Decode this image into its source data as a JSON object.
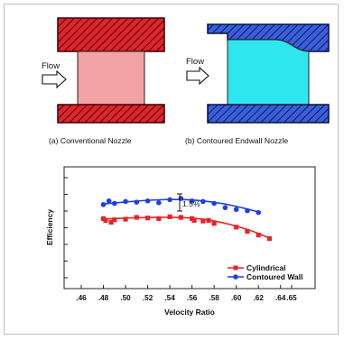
{
  "diagram": {
    "left": {
      "flow_label": "Flow",
      "caption": "(a)  Conventional Nozzle"
    },
    "right": {
      "flow_label": "Flow",
      "caption": "(b)  Contoured Endwall Nozzle"
    },
    "colors": {
      "left_wall": "#e0242c",
      "left_passage": "#f2a2a2",
      "right_wall": "#3a5fdc",
      "right_passage": "#2fe6ef"
    }
  },
  "chart_data": {
    "type": "scatter",
    "title": "",
    "xlabel": "Velocity Ratio",
    "ylabel": "Efficiency",
    "xlim": [
      0.46,
      0.65
    ],
    "x_ticks": [
      ".46",
      ".48",
      ".50",
      ".52",
      ".54",
      ".56",
      ".58",
      ".60",
      ".62",
      ".64",
      ".65"
    ],
    "y_tick_count": 7,
    "y_tick_labels": "none",
    "annotation": "1.5%",
    "legend_position": "bottom-right",
    "series": [
      {
        "name": "Cylindrical",
        "color": "#e8232a",
        "marker": "square",
        "points": [
          [
            0.48,
            0.575
          ],
          [
            0.482,
            0.56
          ],
          [
            0.487,
            0.545
          ],
          [
            0.49,
            0.565
          ],
          [
            0.5,
            0.57
          ],
          [
            0.51,
            0.585
          ],
          [
            0.52,
            0.58
          ],
          [
            0.53,
            0.575
          ],
          [
            0.54,
            0.59
          ],
          [
            0.55,
            0.585
          ],
          [
            0.56,
            0.575
          ],
          [
            0.562,
            0.56
          ],
          [
            0.57,
            0.555
          ],
          [
            0.575,
            0.56
          ],
          [
            0.58,
            0.535
          ],
          [
            0.6,
            0.505
          ],
          [
            0.61,
            0.47
          ],
          [
            0.62,
            0.44
          ],
          [
            0.63,
            0.41
          ]
        ],
        "fit": [
          [
            0.48,
            0.572
          ],
          [
            0.52,
            0.586
          ],
          [
            0.555,
            0.585
          ],
          [
            0.58,
            0.56
          ],
          [
            0.61,
            0.49
          ],
          [
            0.63,
            0.415
          ]
        ]
      },
      {
        "name": "Contoured Wall",
        "color": "#1f3fe0",
        "marker": "circle",
        "points": [
          [
            0.48,
            0.69
          ],
          [
            0.485,
            0.72
          ],
          [
            0.49,
            0.7
          ],
          [
            0.5,
            0.715
          ],
          [
            0.51,
            0.71
          ],
          [
            0.52,
            0.72
          ],
          [
            0.53,
            0.705
          ],
          [
            0.54,
            0.73
          ],
          [
            0.55,
            0.74
          ],
          [
            0.56,
            0.72
          ],
          [
            0.57,
            0.715
          ],
          [
            0.58,
            0.7
          ],
          [
            0.59,
            0.665
          ],
          [
            0.6,
            0.65
          ],
          [
            0.61,
            0.64
          ],
          [
            0.62,
            0.625
          ]
        ],
        "fit": [
          [
            0.48,
            0.695
          ],
          [
            0.52,
            0.728
          ],
          [
            0.555,
            0.735
          ],
          [
            0.585,
            0.705
          ],
          [
            0.605,
            0.665
          ],
          [
            0.62,
            0.63
          ]
        ]
      }
    ]
  }
}
